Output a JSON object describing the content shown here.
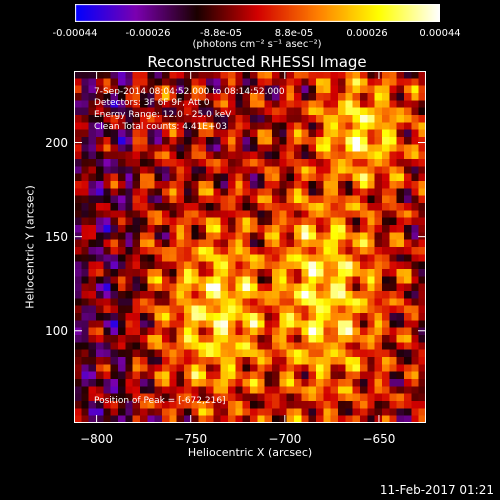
{
  "colorbar": {
    "tick_labels": [
      "-0.00044",
      "-0.00026",
      "-8.8e-05",
      "8.8e-05",
      "0.00026",
      "0.00044"
    ],
    "unit_label": "(photons cm⁻² s⁻¹ asec⁻²)"
  },
  "annotations": {
    "time": "7-Sep-2014 08:04:52.000 to 08:14:52.000",
    "detectors": "Detectors: 3F 6F 9F, Att 0",
    "energy": "Energy Range: 12.0 - 25.0 keV",
    "clean": "Clean    Total counts: 4.41E+03",
    "peak": "Position of Peak = [-672,216]"
  },
  "footer": "11-Feb-2017 01:21",
  "chart_data": {
    "type": "heatmap",
    "title": "Reconstructed RHESSI Image",
    "xlabel": "Heliocentric X (arcsec)",
    "ylabel": "Heliocentric Y (arcsec)",
    "xlim": [
      -812,
      -625
    ],
    "ylim": [
      51,
      238
    ],
    "x_ticks": [
      -800,
      -750,
      -700,
      -650
    ],
    "x_tick_labels": [
      "−800",
      "−750",
      "−700",
      "−650"
    ],
    "y_ticks": [
      100,
      150,
      200
    ],
    "y_tick_labels": [
      "100",
      "150",
      "200"
    ],
    "colorbar_range": [
      -0.00044,
      0.00044
    ],
    "colormap": [
      "#0000ff",
      "#7b00b0",
      "#1a0000",
      "#d20000",
      "#ff8000",
      "#ffff00",
      "#ffffff"
    ],
    "peak_position": [
      -672,
      216
    ],
    "energy_range_kev": [
      12.0,
      25.0
    ],
    "total_counts": 4410
  }
}
